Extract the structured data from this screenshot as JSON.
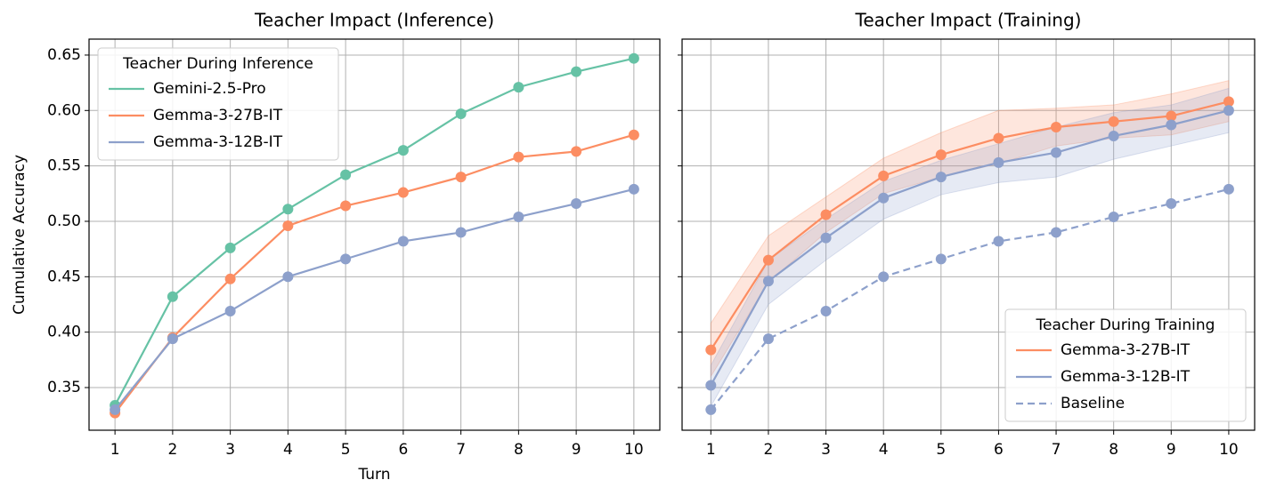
{
  "chart_data": [
    {
      "type": "line",
      "title": "Teacher Impact (Inference)",
      "xlabel": "Turn",
      "ylabel": "Cumulative Accuracy",
      "x": [
        1,
        2,
        3,
        4,
        5,
        6,
        7,
        8,
        9,
        10
      ],
      "xlim": [
        0.55,
        10.45
      ],
      "xticks": [
        1,
        2,
        3,
        4,
        5,
        6,
        7,
        8,
        9,
        10
      ],
      "ylim": [
        0.3115,
        0.6644
      ],
      "yticks": [
        0.35,
        {
          "value": 0.4,
          "label": "0.40"
        },
        0.45,
        {
          "value": 0.5,
          "label": "0.50"
        },
        0.55,
        {
          "value": 0.6,
          "label": "0.60"
        },
        0.65
      ],
      "grid": true,
      "legend": {
        "title": "Teacher During Inference",
        "loc": "upper left"
      },
      "series": [
        {
          "name": "Gemini-2.5-Pro",
          "color": "#66c2a5",
          "values": [
            0.334,
            0.432,
            0.476,
            0.511,
            0.542,
            0.564,
            0.597,
            0.621,
            0.635,
            0.647
          ]
        },
        {
          "name": "Gemma-3-27B-IT",
          "color": "#fc8d62",
          "values": [
            0.327,
            0.395,
            0.448,
            0.496,
            0.514,
            0.526,
            0.54,
            0.558,
            0.563,
            0.578
          ]
        },
        {
          "name": "Gemma-3-12B-IT",
          "color": "#8da0cb",
          "values": [
            0.33,
            0.394,
            0.419,
            0.45,
            0.466,
            0.482,
            0.49,
            0.504,
            0.516,
            0.529
          ]
        }
      ]
    },
    {
      "type": "line",
      "title": "Teacher Impact (Training)",
      "sharey": true,
      "x": [
        1,
        2,
        3,
        4,
        5,
        6,
        7,
        8,
        9,
        10
      ],
      "xlim": [
        0.5,
        10.45
      ],
      "xticks": [
        1,
        2,
        3,
        4,
        5,
        6,
        7,
        8,
        9,
        10
      ],
      "ylim": [
        0.3115,
        0.6644
      ],
      "grid": true,
      "legend": {
        "title": "Teacher During Training",
        "loc": "lower right"
      },
      "series": [
        {
          "name": "Gemma-3-27B-IT",
          "color": "#fc8d62",
          "values": [
            0.384,
            0.465,
            0.506,
            0.541,
            0.56,
            0.575,
            0.585,
            0.59,
            0.595,
            0.608
          ],
          "lower": [
            0.36,
            0.445,
            0.49,
            0.525,
            0.54,
            0.552,
            0.568,
            0.575,
            0.578,
            0.59
          ],
          "upper": [
            0.408,
            0.487,
            0.522,
            0.557,
            0.58,
            0.6,
            0.602,
            0.605,
            0.615,
            0.627
          ]
        },
        {
          "name": "Gemma-3-12B-IT",
          "color": "#8da0cb",
          "values": [
            0.352,
            0.446,
            0.485,
            0.521,
            0.54,
            0.553,
            0.562,
            0.577,
            0.587,
            0.6
          ],
          "lower": [
            0.333,
            0.425,
            0.465,
            0.502,
            0.524,
            0.535,
            0.54,
            0.556,
            0.568,
            0.58
          ],
          "upper": [
            0.37,
            0.465,
            0.502,
            0.536,
            0.555,
            0.57,
            0.585,
            0.598,
            0.605,
            0.62
          ]
        },
        {
          "name": "Baseline",
          "color": "#8da0cb",
          "dash": "dashed",
          "values": [
            0.33,
            0.394,
            0.419,
            0.45,
            0.466,
            0.482,
            0.49,
            0.504,
            0.516,
            0.529
          ]
        }
      ]
    }
  ]
}
